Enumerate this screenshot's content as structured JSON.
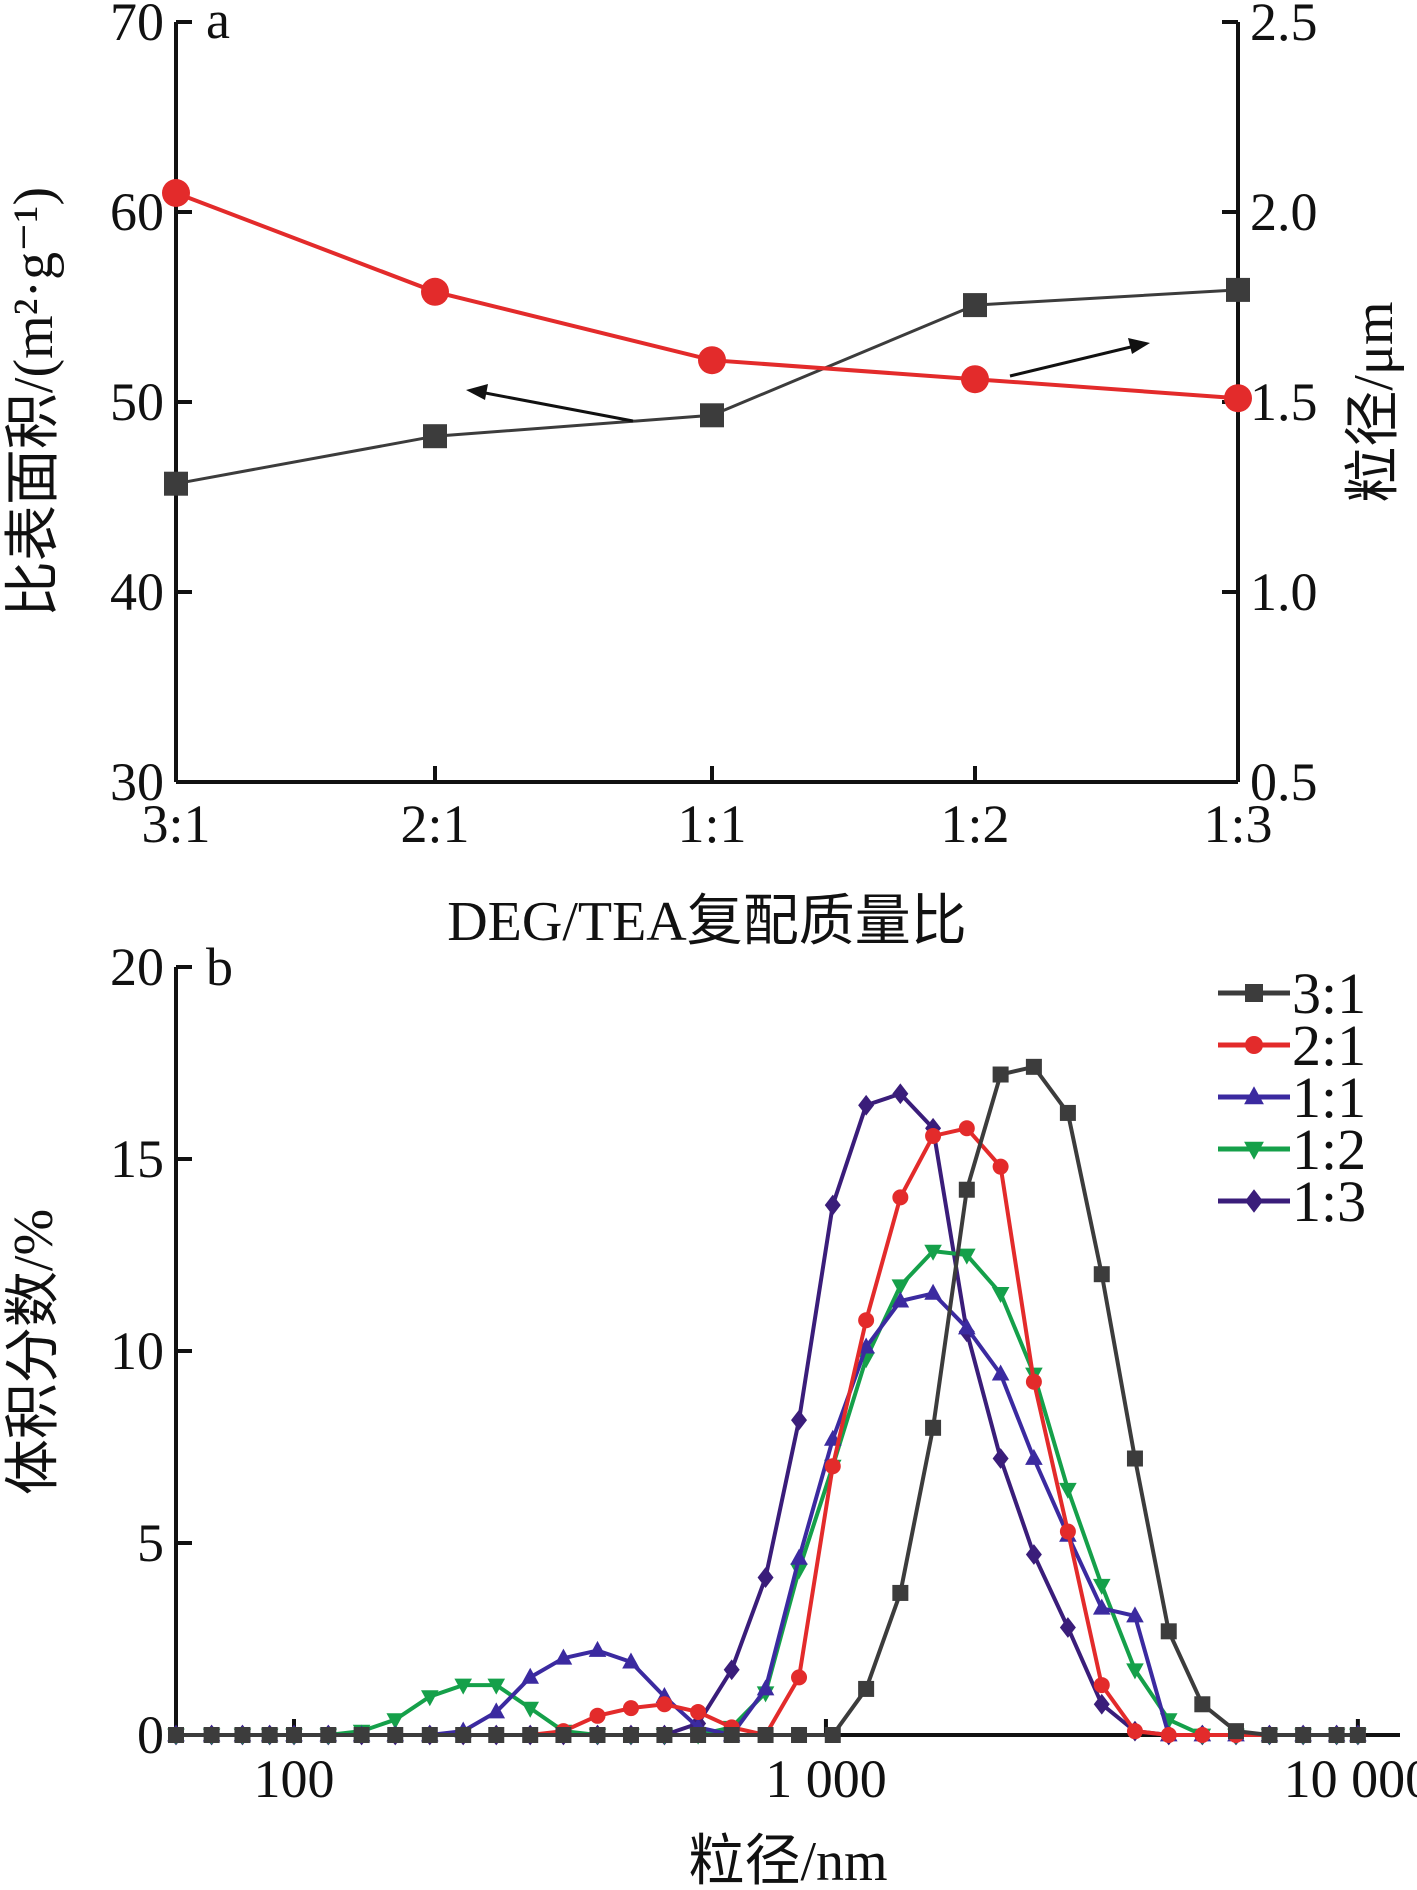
{
  "chart_data": [
    {
      "panel": "a",
      "type": "line",
      "categories": [
        "3:1",
        "2:1",
        "1:1",
        "1:2",
        "1:3"
      ],
      "xlabel": "DEG/TEA复配质量比",
      "ylabel_left": "比表面积/(m²·g⁻¹)",
      "ylabel_right": "粒径/μm",
      "ylim_left": [
        30,
        70
      ],
      "yticks_left": [
        "30",
        "40",
        "50",
        "60",
        "70"
      ],
      "ylim_right": [
        0.5,
        2.5
      ],
      "yticks_right": [
        "0.5",
        "1.0",
        "1.5",
        "2.0",
        "2.5"
      ],
      "series": [
        {
          "axis": "left",
          "color": "#3c3c3c",
          "marker": "square",
          "values": [
            45.7,
            48.2,
            49.3,
            55.1,
            55.9
          ]
        },
        {
          "axis": "right",
          "color": "#e32b2b",
          "marker": "circle",
          "values": [
            2.05,
            1.79,
            1.61,
            1.56,
            1.51
          ]
        }
      ],
      "grid": false
    },
    {
      "panel": "b",
      "type": "line",
      "xscale": "log",
      "xlim": [
        60,
        12000
      ],
      "xticks": [
        100,
        1000,
        10000
      ],
      "xtick_labels": [
        "100",
        "1 000",
        "10 000"
      ],
      "xlabel": "粒径/nm",
      "ylabel": "体积分数/%",
      "ylim": [
        0,
        20
      ],
      "yticks": [
        "0",
        "5",
        "10",
        "15",
        "20"
      ],
      "legend_position": "top-right",
      "grid": false,
      "x": [
        60,
        70,
        80,
        90,
        100,
        116,
        134,
        155,
        180,
        208,
        240,
        278,
        321,
        372,
        430,
        497,
        575,
        665,
        770,
        890,
        1030,
        1190,
        1380,
        1590,
        1840,
        2130,
        2460,
        2850,
        3300,
        3810,
        4410,
        5100,
        5900,
        6820,
        7890,
        9120,
        10000
      ],
      "series": [
        {
          "name": "3:1",
          "color": "#3c3c3c",
          "marker": "square",
          "values": [
            0,
            0,
            0,
            0,
            0,
            0,
            0,
            0,
            0,
            0,
            0,
            0,
            0,
            0,
            0,
            0,
            0,
            0,
            0,
            0,
            0,
            1.2,
            3.7,
            8.0,
            14.2,
            17.2,
            17.4,
            16.2,
            12.0,
            7.2,
            2.7,
            0.8,
            0.1,
            0,
            0,
            0,
            0
          ]
        },
        {
          "name": "2:1",
          "color": "#e32b2b",
          "marker": "circle",
          "values": [
            0,
            0,
            0,
            0,
            0,
            0,
            0,
            0,
            0,
            0,
            0,
            0,
            0.1,
            0.5,
            0.7,
            0.8,
            0.6,
            0.2,
            0,
            1.5,
            7.0,
            10.8,
            14.0,
            15.6,
            15.8,
            14.8,
            9.2,
            5.3,
            1.3,
            0.1,
            0,
            0,
            0,
            0,
            0,
            0,
            0
          ]
        },
        {
          "name": "1:1",
          "color": "#3b2aa0",
          "marker": "triangle-up",
          "values": [
            0,
            0,
            0,
            0,
            0,
            0,
            0,
            0,
            0,
            0.1,
            0.6,
            1.5,
            2.0,
            2.2,
            1.9,
            1.0,
            0.2,
            0,
            1.2,
            4.6,
            7.7,
            10.1,
            11.3,
            11.5,
            10.6,
            9.4,
            7.2,
            5.2,
            3.3,
            3.1,
            0,
            0,
            0,
            0,
            0,
            0,
            0
          ]
        },
        {
          "name": "1:2",
          "color": "#15a04a",
          "marker": "triangle-down",
          "values": [
            0,
            0,
            0,
            0,
            0,
            0,
            0.1,
            0.4,
            1.0,
            1.3,
            1.3,
            0.7,
            0.1,
            0,
            0,
            0,
            0,
            0.2,
            1.1,
            4.3,
            7.0,
            9.8,
            11.7,
            12.6,
            12.5,
            11.5,
            9.4,
            6.4,
            3.9,
            1.7,
            0.4,
            0,
            0,
            0,
            0,
            0,
            0
          ]
        },
        {
          "name": "1:3",
          "color": "#3a1d7a",
          "marker": "diamond",
          "values": [
            0,
            0,
            0,
            0,
            0,
            0,
            0,
            0,
            0,
            0,
            0,
            0,
            0,
            0,
            0,
            0,
            0.3,
            1.7,
            4.1,
            8.2,
            13.8,
            16.4,
            16.7,
            15.8,
            10.5,
            7.2,
            4.7,
            2.8,
            0.8,
            0.1,
            0,
            0,
            0,
            0,
            0,
            0,
            0
          ]
        }
      ]
    }
  ]
}
